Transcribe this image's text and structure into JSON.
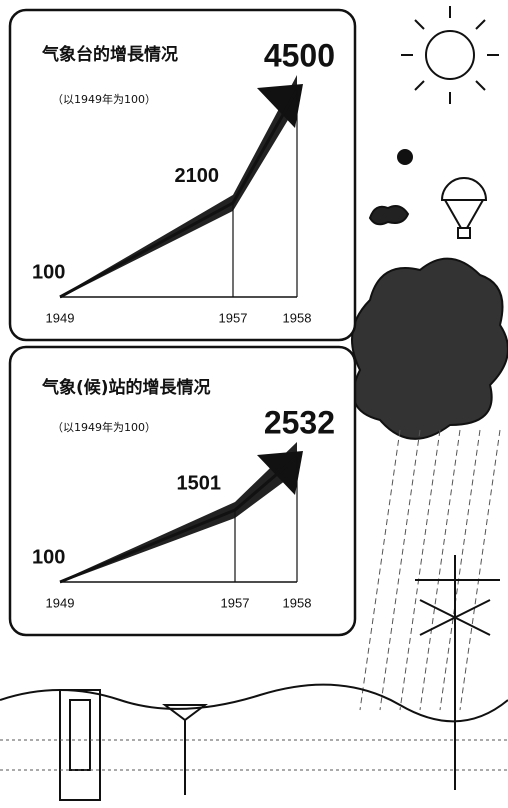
{
  "chart_data": [
    {
      "type": "line",
      "title": "气象台的增長情况",
      "subtitle": "（以1949年为100）",
      "categories": [
        "1949",
        "1957",
        "1958"
      ],
      "values": [
        100,
        2100,
        4500
      ],
      "color": "#111111"
    },
    {
      "type": "line",
      "title": "气象(候)站的增長情况",
      "subtitle": "（以1949年为100）",
      "categories": [
        "1949",
        "1957",
        "1958"
      ],
      "values": [
        100,
        1501,
        2532
      ],
      "color": "#111111"
    }
  ]
}
